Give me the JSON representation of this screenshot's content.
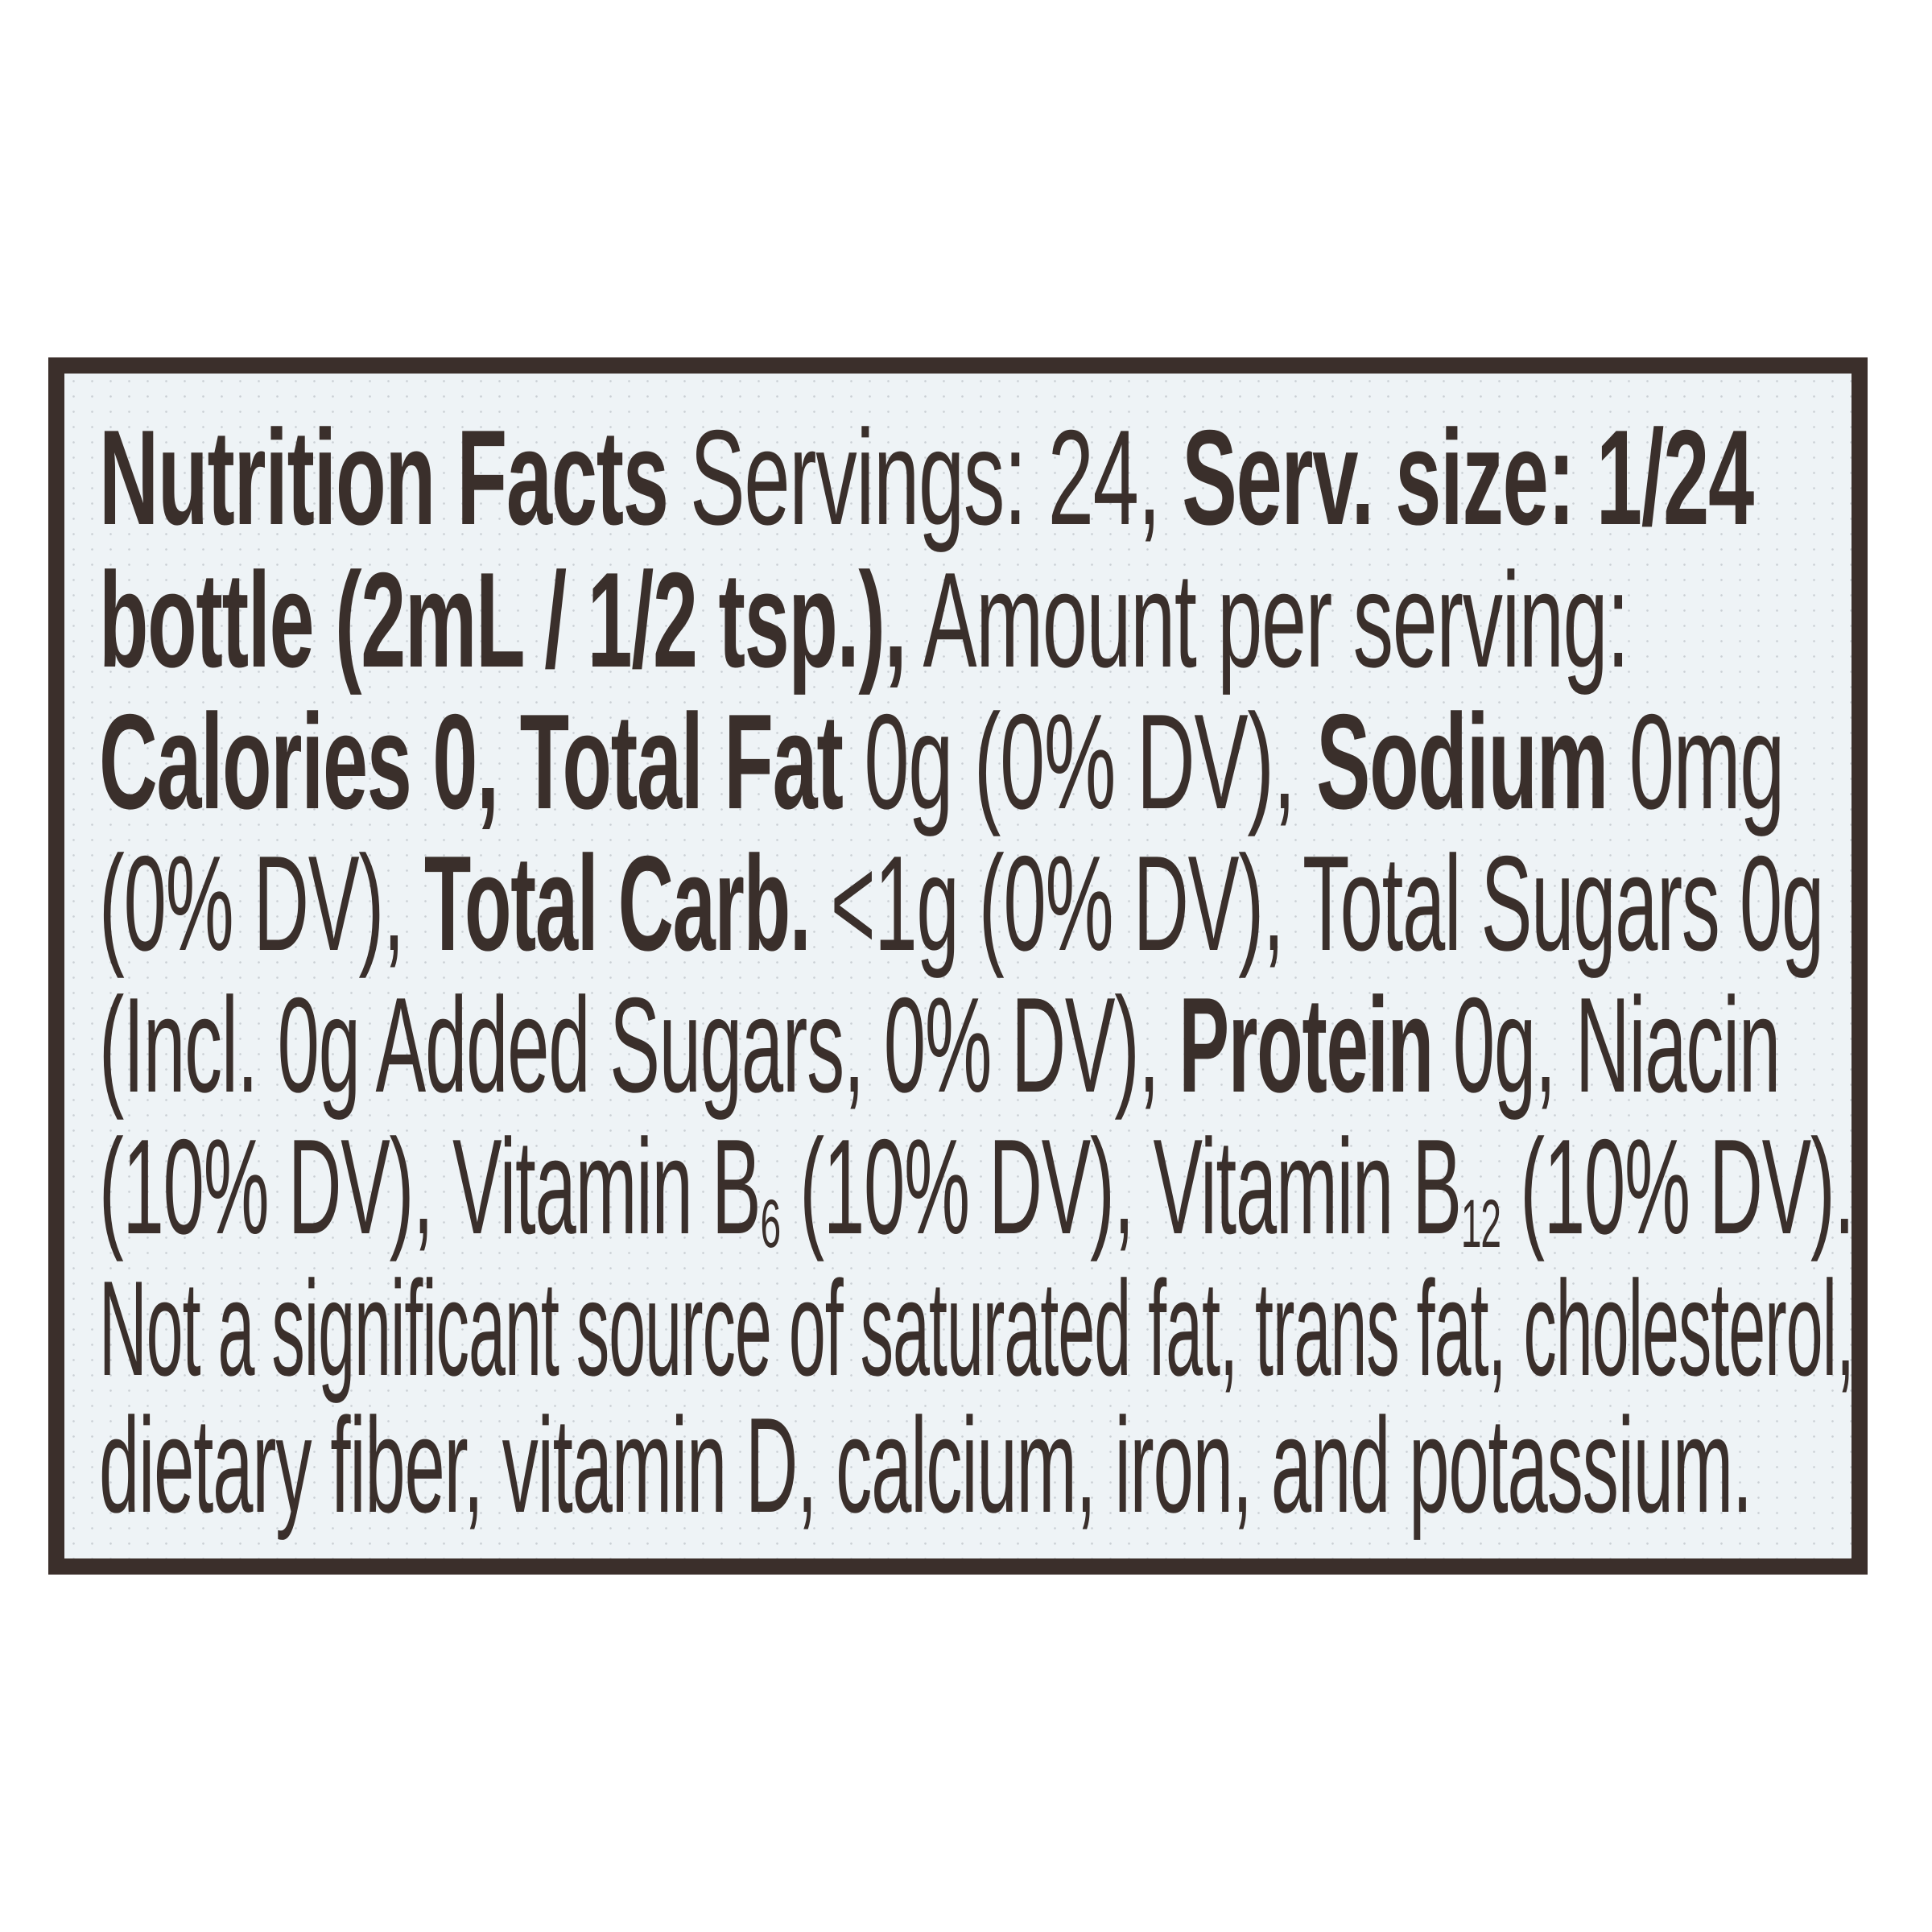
{
  "panel": {
    "title": "Nutrition Facts",
    "lines": [
      [
        {
          "t": "Nutrition Facts",
          "b": true
        },
        {
          "t": " Servings: 24, "
        },
        {
          "t": "Serv. size: 1/24",
          "b": true
        }
      ],
      [
        {
          "t": "bottle (2mL / 1/2 tsp.),",
          "b": true
        },
        {
          "t": " Amount per serving:"
        }
      ],
      [
        {
          "t": "Calories 0, Total Fat",
          "b": true
        },
        {
          "t": " 0g (0% DV), "
        },
        {
          "t": "Sodium",
          "b": true
        },
        {
          "t": " 0mg"
        }
      ],
      [
        {
          "t": "(0% DV), "
        },
        {
          "t": "Total Carb.",
          "b": true
        },
        {
          "t": " <1g (0% DV), Total Sugars 0g"
        }
      ],
      [
        {
          "t": "(Incl. 0g Added Sugars, 0% DV), "
        },
        {
          "t": "Protein",
          "b": true
        },
        {
          "t": " 0g, Niacin"
        }
      ],
      [
        {
          "t": "(10% DV), Vitamin B"
        },
        {
          "t": "6",
          "sub": true
        },
        {
          "t": " (10% DV), Vitamin B"
        },
        {
          "t": "12",
          "sub": true
        },
        {
          "t": " (10% DV)."
        }
      ],
      [
        {
          "t": "Not a significant source of saturated fat, trans fat, cholesterol,"
        }
      ],
      [
        {
          "t": "dietary fiber, vitamin D, calcium, iron, and potassium."
        }
      ]
    ]
  },
  "colors": {
    "text": "#3a2f2b",
    "border": "#3b2f2b",
    "background": "#eef3f6"
  }
}
